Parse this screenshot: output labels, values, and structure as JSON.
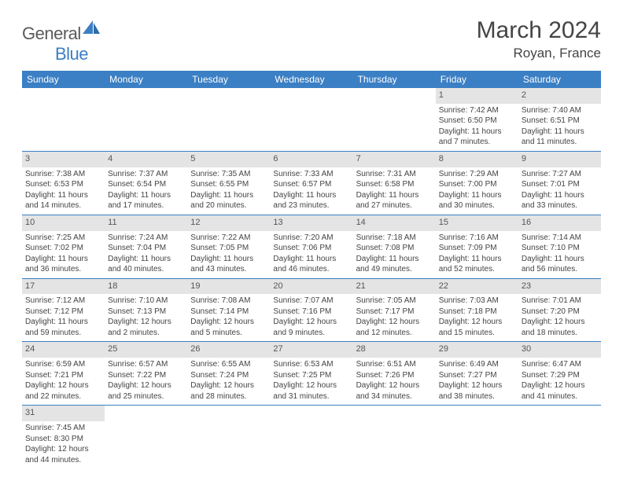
{
  "logo": {
    "text1": "General",
    "text2": "Blue"
  },
  "title": "March 2024",
  "location": "Royan, France",
  "colors": {
    "header_bg": "#3b7fc4",
    "header_text": "#ffffff",
    "daynum_bg": "#e4e4e4",
    "row_border": "#3b7fc4",
    "body_text": "#444444",
    "logo_gray": "#5a5a5a",
    "logo_blue": "#3b7fc4"
  },
  "day_headers": [
    "Sunday",
    "Monday",
    "Tuesday",
    "Wednesday",
    "Thursday",
    "Friday",
    "Saturday"
  ],
  "weeks": [
    [
      null,
      null,
      null,
      null,
      null,
      {
        "n": "1",
        "sr": "Sunrise: 7:42 AM",
        "ss": "Sunset: 6:50 PM",
        "d1": "Daylight: 11 hours",
        "d2": "and 7 minutes."
      },
      {
        "n": "2",
        "sr": "Sunrise: 7:40 AM",
        "ss": "Sunset: 6:51 PM",
        "d1": "Daylight: 11 hours",
        "d2": "and 11 minutes."
      }
    ],
    [
      {
        "n": "3",
        "sr": "Sunrise: 7:38 AM",
        "ss": "Sunset: 6:53 PM",
        "d1": "Daylight: 11 hours",
        "d2": "and 14 minutes."
      },
      {
        "n": "4",
        "sr": "Sunrise: 7:37 AM",
        "ss": "Sunset: 6:54 PM",
        "d1": "Daylight: 11 hours",
        "d2": "and 17 minutes."
      },
      {
        "n": "5",
        "sr": "Sunrise: 7:35 AM",
        "ss": "Sunset: 6:55 PM",
        "d1": "Daylight: 11 hours",
        "d2": "and 20 minutes."
      },
      {
        "n": "6",
        "sr": "Sunrise: 7:33 AM",
        "ss": "Sunset: 6:57 PM",
        "d1": "Daylight: 11 hours",
        "d2": "and 23 minutes."
      },
      {
        "n": "7",
        "sr": "Sunrise: 7:31 AM",
        "ss": "Sunset: 6:58 PM",
        "d1": "Daylight: 11 hours",
        "d2": "and 27 minutes."
      },
      {
        "n": "8",
        "sr": "Sunrise: 7:29 AM",
        "ss": "Sunset: 7:00 PM",
        "d1": "Daylight: 11 hours",
        "d2": "and 30 minutes."
      },
      {
        "n": "9",
        "sr": "Sunrise: 7:27 AM",
        "ss": "Sunset: 7:01 PM",
        "d1": "Daylight: 11 hours",
        "d2": "and 33 minutes."
      }
    ],
    [
      {
        "n": "10",
        "sr": "Sunrise: 7:25 AM",
        "ss": "Sunset: 7:02 PM",
        "d1": "Daylight: 11 hours",
        "d2": "and 36 minutes."
      },
      {
        "n": "11",
        "sr": "Sunrise: 7:24 AM",
        "ss": "Sunset: 7:04 PM",
        "d1": "Daylight: 11 hours",
        "d2": "and 40 minutes."
      },
      {
        "n": "12",
        "sr": "Sunrise: 7:22 AM",
        "ss": "Sunset: 7:05 PM",
        "d1": "Daylight: 11 hours",
        "d2": "and 43 minutes."
      },
      {
        "n": "13",
        "sr": "Sunrise: 7:20 AM",
        "ss": "Sunset: 7:06 PM",
        "d1": "Daylight: 11 hours",
        "d2": "and 46 minutes."
      },
      {
        "n": "14",
        "sr": "Sunrise: 7:18 AM",
        "ss": "Sunset: 7:08 PM",
        "d1": "Daylight: 11 hours",
        "d2": "and 49 minutes."
      },
      {
        "n": "15",
        "sr": "Sunrise: 7:16 AM",
        "ss": "Sunset: 7:09 PM",
        "d1": "Daylight: 11 hours",
        "d2": "and 52 minutes."
      },
      {
        "n": "16",
        "sr": "Sunrise: 7:14 AM",
        "ss": "Sunset: 7:10 PM",
        "d1": "Daylight: 11 hours",
        "d2": "and 56 minutes."
      }
    ],
    [
      {
        "n": "17",
        "sr": "Sunrise: 7:12 AM",
        "ss": "Sunset: 7:12 PM",
        "d1": "Daylight: 11 hours",
        "d2": "and 59 minutes."
      },
      {
        "n": "18",
        "sr": "Sunrise: 7:10 AM",
        "ss": "Sunset: 7:13 PM",
        "d1": "Daylight: 12 hours",
        "d2": "and 2 minutes."
      },
      {
        "n": "19",
        "sr": "Sunrise: 7:08 AM",
        "ss": "Sunset: 7:14 PM",
        "d1": "Daylight: 12 hours",
        "d2": "and 5 minutes."
      },
      {
        "n": "20",
        "sr": "Sunrise: 7:07 AM",
        "ss": "Sunset: 7:16 PM",
        "d1": "Daylight: 12 hours",
        "d2": "and 9 minutes."
      },
      {
        "n": "21",
        "sr": "Sunrise: 7:05 AM",
        "ss": "Sunset: 7:17 PM",
        "d1": "Daylight: 12 hours",
        "d2": "and 12 minutes."
      },
      {
        "n": "22",
        "sr": "Sunrise: 7:03 AM",
        "ss": "Sunset: 7:18 PM",
        "d1": "Daylight: 12 hours",
        "d2": "and 15 minutes."
      },
      {
        "n": "23",
        "sr": "Sunrise: 7:01 AM",
        "ss": "Sunset: 7:20 PM",
        "d1": "Daylight: 12 hours",
        "d2": "and 18 minutes."
      }
    ],
    [
      {
        "n": "24",
        "sr": "Sunrise: 6:59 AM",
        "ss": "Sunset: 7:21 PM",
        "d1": "Daylight: 12 hours",
        "d2": "and 22 minutes."
      },
      {
        "n": "25",
        "sr": "Sunrise: 6:57 AM",
        "ss": "Sunset: 7:22 PM",
        "d1": "Daylight: 12 hours",
        "d2": "and 25 minutes."
      },
      {
        "n": "26",
        "sr": "Sunrise: 6:55 AM",
        "ss": "Sunset: 7:24 PM",
        "d1": "Daylight: 12 hours",
        "d2": "and 28 minutes."
      },
      {
        "n": "27",
        "sr": "Sunrise: 6:53 AM",
        "ss": "Sunset: 7:25 PM",
        "d1": "Daylight: 12 hours",
        "d2": "and 31 minutes."
      },
      {
        "n": "28",
        "sr": "Sunrise: 6:51 AM",
        "ss": "Sunset: 7:26 PM",
        "d1": "Daylight: 12 hours",
        "d2": "and 34 minutes."
      },
      {
        "n": "29",
        "sr": "Sunrise: 6:49 AM",
        "ss": "Sunset: 7:27 PM",
        "d1": "Daylight: 12 hours",
        "d2": "and 38 minutes."
      },
      {
        "n": "30",
        "sr": "Sunrise: 6:47 AM",
        "ss": "Sunset: 7:29 PM",
        "d1": "Daylight: 12 hours",
        "d2": "and 41 minutes."
      }
    ],
    [
      {
        "n": "31",
        "sr": "Sunrise: 7:45 AM",
        "ss": "Sunset: 8:30 PM",
        "d1": "Daylight: 12 hours",
        "d2": "and 44 minutes."
      },
      null,
      null,
      null,
      null,
      null,
      null
    ]
  ]
}
